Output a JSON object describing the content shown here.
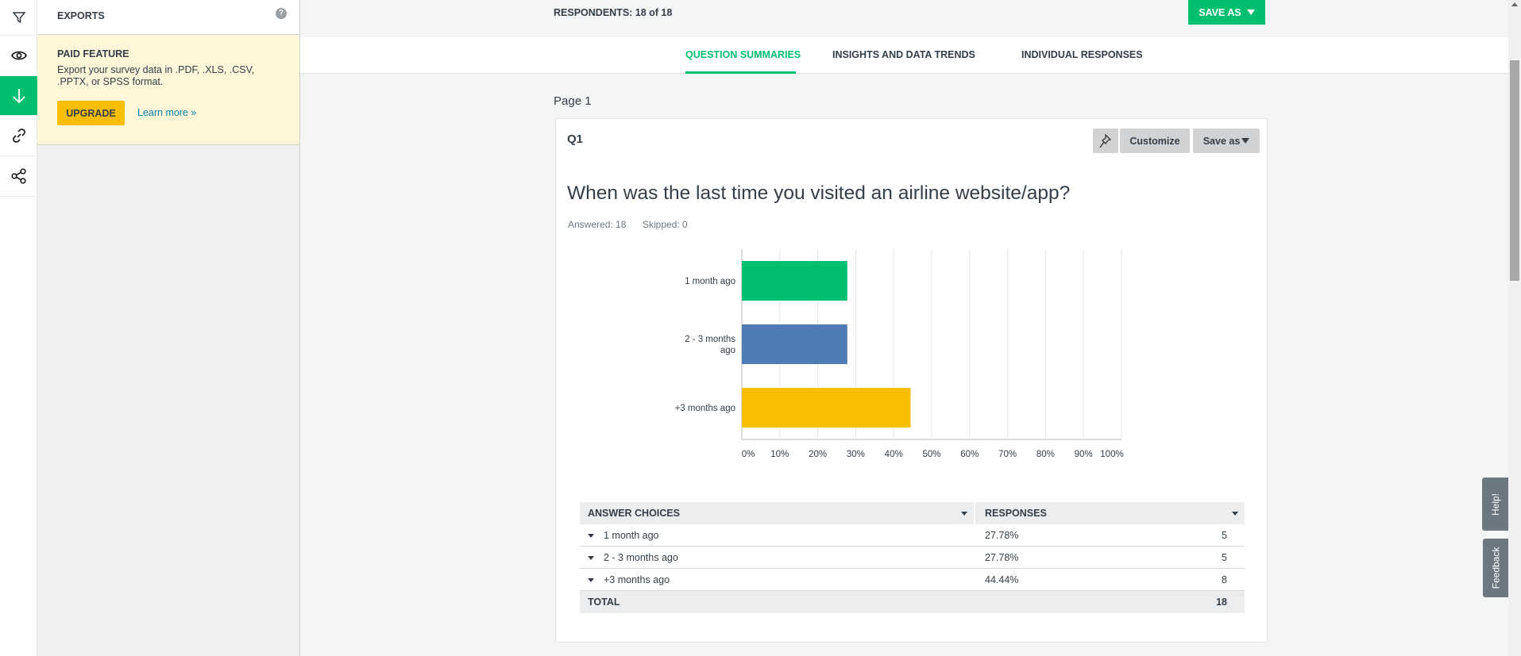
{
  "rail": {
    "items": [
      {
        "icon": "filter-icon"
      },
      {
        "icon": "eye-icon"
      },
      {
        "icon": "download-icon",
        "active": true
      },
      {
        "icon": "link-icon"
      },
      {
        "icon": "share-icon"
      }
    ]
  },
  "exports_panel": {
    "title": "EXPORTS",
    "paid_title": "PAID FEATURE",
    "paid_text_line1": "Export your survey data in .PDF, .XLS, .CSV,",
    "paid_text_line2": ".PPTX, or SPSS format.",
    "upgrade_label": "UPGRADE",
    "learn_more_label": "Learn more »"
  },
  "header": {
    "respondents": "RESPONDENTS: 18 of 18",
    "save_as_label": "SAVE AS"
  },
  "tabs": [
    {
      "label": "QUESTION SUMMARIES",
      "active": true
    },
    {
      "label": "INSIGHTS AND DATA TRENDS"
    },
    {
      "label": "INDIVIDUAL RESPONSES"
    }
  ],
  "page_label": "Page 1",
  "question": {
    "number": "Q1",
    "customize_label": "Customize",
    "save_as_label": "Save as",
    "text": "When was the last time you visited an airline website/app?",
    "answered": "Answered: 18",
    "skipped": "Skipped: 0"
  },
  "chart_data": {
    "type": "bar",
    "orientation": "horizontal",
    "categories": [
      "1 month ago",
      "2 - 3 months ago",
      "+3 months ago"
    ],
    "values": [
      27.78,
      27.78,
      44.44
    ],
    "colors": [
      "#00bf6f",
      "#507cb6",
      "#f9be00"
    ],
    "xlim": [
      0,
      100
    ],
    "x_ticks": [
      "0%",
      "10%",
      "20%",
      "30%",
      "40%",
      "50%",
      "60%",
      "70%",
      "80%",
      "90%",
      "100%"
    ],
    "grid": true
  },
  "table": {
    "headers": [
      "ANSWER CHOICES",
      "RESPONSES"
    ],
    "rows": [
      {
        "choice": "1 month ago",
        "percent": "27.78%",
        "count": "5"
      },
      {
        "choice": "2 - 3 months ago",
        "percent": "27.78%",
        "count": "5"
      },
      {
        "choice": "+3 months ago",
        "percent": "44.44%",
        "count": "8"
      }
    ],
    "total_label": "TOTAL",
    "total": "18"
  },
  "side": {
    "help_label": "Help!",
    "feedback_label": "Feedback"
  },
  "colors": {
    "accent": "#00bf6f",
    "upgrade": "#f9be00",
    "link": "#007faa"
  }
}
